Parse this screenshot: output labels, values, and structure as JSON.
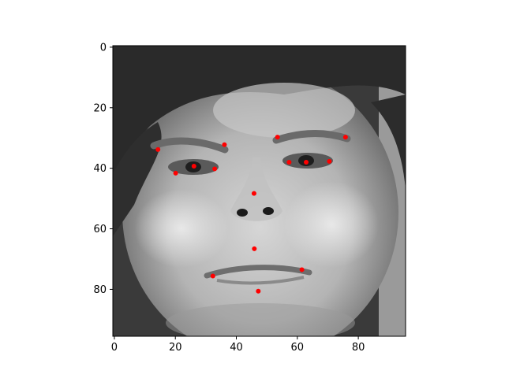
{
  "chart_data": {
    "type": "scatter",
    "background": "grayscale-face-photo",
    "image_extent": {
      "x": [
        -0.5,
        95.5
      ],
      "y": [
        95.5,
        -0.5
      ]
    },
    "xlim": [
      -0.5,
      95.5
    ],
    "ylim": [
      95.5,
      -0.5
    ],
    "y_inverted": true,
    "grid": false,
    "xticks": [
      0,
      20,
      40,
      60,
      80
    ],
    "yticks": [
      0,
      20,
      40,
      60,
      80
    ],
    "xtick_labels": [
      "0",
      "20",
      "40",
      "60",
      "80"
    ],
    "ytick_labels": [
      "0",
      "20",
      "40",
      "60",
      "80"
    ],
    "xlabel": "",
    "ylabel": "",
    "title": "",
    "marker_color": "#ff0000",
    "points": [
      {
        "x": 14.3,
        "y": 33.8
      },
      {
        "x": 36.1,
        "y": 32.2
      },
      {
        "x": 53.5,
        "y": 29.7
      },
      {
        "x": 75.8,
        "y": 29.7
      },
      {
        "x": 20.1,
        "y": 41.6
      },
      {
        "x": 26.1,
        "y": 39.3
      },
      {
        "x": 32.9,
        "y": 40.2
      },
      {
        "x": 57.3,
        "y": 38.0
      },
      {
        "x": 62.9,
        "y": 38.0
      },
      {
        "x": 70.5,
        "y": 37.7
      },
      {
        "x": 45.8,
        "y": 48.3
      },
      {
        "x": 45.9,
        "y": 66.6
      },
      {
        "x": 32.3,
        "y": 75.6
      },
      {
        "x": 61.5,
        "y": 73.5
      },
      {
        "x": 47.2,
        "y": 80.6
      }
    ]
  }
}
